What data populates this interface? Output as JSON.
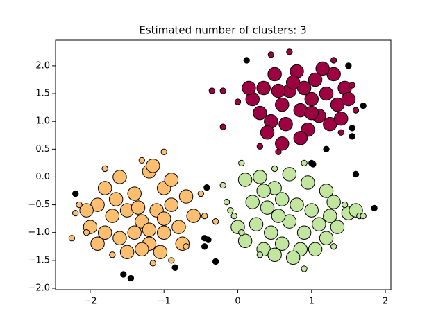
{
  "chart_data": {
    "type": "scatter",
    "title": "Estimated number of clusters: 3",
    "xlim": [
      -2.47,
      2.075
    ],
    "ylim": [
      -2.025,
      2.46
    ],
    "xticks": [
      {
        "value": -2,
        "label": "−2"
      },
      {
        "value": -1,
        "label": "−1"
      },
      0,
      1,
      2
    ],
    "yticks": [
      {
        "value": -2.0,
        "label": "−2.0"
      },
      {
        "value": -1.5,
        "label": "−1.5"
      },
      {
        "value": -1.0,
        "label": "−1.0"
      },
      {
        "value": -0.5,
        "label": "−0.5"
      },
      {
        "value": 0.0,
        "label": "0.0"
      },
      0.5,
      {
        "value": 1.0,
        "label": "1.0"
      },
      1.5,
      {
        "value": 2.0,
        "label": "2.0"
      }
    ],
    "series": [
      {
        "color": "#9e0142",
        "x": [
          0.2,
          0.35,
          0.5,
          0.6,
          0.7,
          0.8,
          0.85,
          0.9,
          1.0,
          1.05,
          1.1,
          1.2,
          1.3,
          1.35,
          1.45,
          0.45,
          0.65,
          0.95,
          1.25,
          0.3,
          0.55,
          1.15,
          1.4,
          0.75,
          0.4,
          1.0,
          0.15,
          1.5,
          0.6,
          0.85,
          -0.35,
          -0.2,
          -0.2,
          0.3,
          0.45,
          0.7,
          1.55,
          1.4,
          1.3,
          0.0,
          1.6,
          0.55
        ],
        "y": [
          1.4,
          1.6,
          1.85,
          1.3,
          1.55,
          1.9,
          1.2,
          1.6,
          1.4,
          1.75,
          1.1,
          1.5,
          1.85,
          1.3,
          1.6,
          1.0,
          0.95,
          0.85,
          0.95,
          1.15,
          1.55,
          1.95,
          1.05,
          1.7,
          0.8,
          1.15,
          1.6,
          1.4,
          0.6,
          0.7,
          1.55,
          1.55,
          0.9,
          0.55,
          2.2,
          2.25,
          1.65,
          0.8,
          2.1,
          1.35,
          1.2,
          0.45
        ],
        "sizes": [
          14,
          14,
          14,
          14,
          14,
          14,
          14,
          14,
          14,
          14,
          14,
          14,
          14,
          14,
          14,
          14,
          14,
          14,
          14,
          14,
          14,
          14,
          14,
          14,
          14,
          14,
          14,
          14,
          14,
          14,
          6,
          6,
          6,
          6,
          6,
          6,
          6,
          6,
          6,
          6,
          6,
          6
        ]
      },
      {
        "color": "#fdbf6f",
        "x": [
          -1.8,
          -1.6,
          -1.4,
          -1.2,
          -1.0,
          -1.9,
          -1.7,
          -1.5,
          -1.3,
          -1.1,
          -0.9,
          -0.6,
          -2.0,
          -1.8,
          -1.6,
          -1.4,
          -1.2,
          -1.0,
          -0.8,
          -1.9,
          -1.5,
          -1.3,
          -1.05,
          -0.75,
          -1.15,
          -0.9,
          -1.65,
          -2.05,
          -1.35,
          -0.7,
          -1.0,
          -1.2,
          -2.25,
          -2.15,
          -2.2,
          -1.8,
          -1.3,
          -1.0,
          -0.5,
          -0.3,
          -1.15,
          -0.9,
          -1.7,
          -0.7,
          -0.45,
          -2.05
        ],
        "y": [
          -0.2,
          0.0,
          -0.3,
          0.1,
          -0.2,
          -0.5,
          -0.7,
          -0.6,
          -0.8,
          -0.6,
          -0.5,
          -0.7,
          -0.9,
          -1.0,
          -1.1,
          -1.0,
          -1.2,
          -1.0,
          -0.9,
          -1.2,
          -1.35,
          -1.3,
          -1.35,
          -1.2,
          0.2,
          -0.05,
          -0.4,
          -0.6,
          -0.55,
          -0.35,
          -0.75,
          -0.95,
          -1.1,
          -0.5,
          -0.65,
          0.15,
          0.3,
          0.45,
          -0.3,
          -0.8,
          -1.55,
          -1.5,
          -1.4,
          -1.25,
          -0.7,
          -1.0
        ],
        "sizes": [
          14,
          14,
          14,
          14,
          14,
          14,
          14,
          14,
          14,
          14,
          14,
          14,
          14,
          14,
          14,
          14,
          14,
          14,
          14,
          14,
          14,
          14,
          14,
          14,
          14,
          14,
          14,
          14,
          14,
          14,
          14,
          14,
          6,
          6,
          6,
          6,
          6,
          6,
          6,
          6,
          6,
          6,
          6,
          6,
          6,
          6
        ]
      },
      {
        "color": "#c2e69f",
        "x": [
          0.1,
          0.3,
          0.5,
          0.7,
          0.95,
          1.2,
          0.2,
          0.4,
          0.6,
          0.8,
          1.0,
          1.3,
          1.5,
          0.0,
          0.25,
          0.45,
          0.7,
          0.9,
          1.1,
          1.35,
          0.1,
          0.35,
          0.6,
          0.85,
          1.2,
          0.5,
          0.75,
          1.05,
          1.6,
          0.55,
          1.25,
          0.35,
          -0.2,
          -0.15,
          -0.1,
          0.05,
          0.5,
          0.9,
          1.65,
          1.7,
          1.3,
          0.9,
          0.3,
          -0.05,
          1.45,
          0.05
        ],
        "y": [
          -0.05,
          0.0,
          -0.2,
          0.05,
          -0.1,
          -0.25,
          -0.45,
          -0.55,
          -0.4,
          -0.5,
          -0.6,
          -0.45,
          -0.65,
          -0.9,
          -0.85,
          -1.0,
          -0.8,
          -1.0,
          -0.85,
          -0.9,
          -1.15,
          -1.3,
          -1.2,
          -1.3,
          -1.1,
          -1.4,
          -1.45,
          -1.3,
          -0.6,
          -0.7,
          -0.7,
          -0.25,
          -0.15,
          -0.45,
          -0.6,
          0.25,
          0.15,
          0.25,
          -0.7,
          -0.7,
          -1.25,
          -1.65,
          -1.4,
          -0.7,
          -0.5,
          -1.0
        ],
        "sizes": [
          14,
          14,
          14,
          14,
          14,
          14,
          14,
          14,
          14,
          14,
          14,
          14,
          14,
          14,
          14,
          14,
          14,
          14,
          14,
          14,
          14,
          14,
          14,
          14,
          14,
          14,
          14,
          14,
          14,
          14,
          14,
          14,
          6,
          6,
          6,
          6,
          6,
          6,
          6,
          6,
          6,
          6,
          6,
          6,
          6,
          6
        ]
      },
      {
        "color": "#000000",
        "x": [
          -2.2,
          -1.55,
          -1.45,
          -0.85,
          -0.42,
          -0.45,
          -0.45,
          -0.4,
          -0.3,
          0.12,
          1.0,
          1.02,
          1.5,
          1.55,
          1.55,
          1.7,
          1.2,
          1.6,
          1.85
        ],
        "y": [
          -0.3,
          -1.75,
          -1.82,
          -1.63,
          -0.19,
          -1.25,
          -1.1,
          -1.13,
          -1.52,
          2.1,
          0.25,
          0.23,
          2.0,
          0.88,
          0.73,
          1.28,
          0.5,
          0.05,
          -0.56
        ],
        "sizes": [
          6,
          6,
          6,
          6,
          6,
          6,
          6,
          6,
          6,
          6,
          6,
          6,
          6,
          6,
          6,
          6,
          6,
          6,
          6
        ]
      }
    ]
  }
}
